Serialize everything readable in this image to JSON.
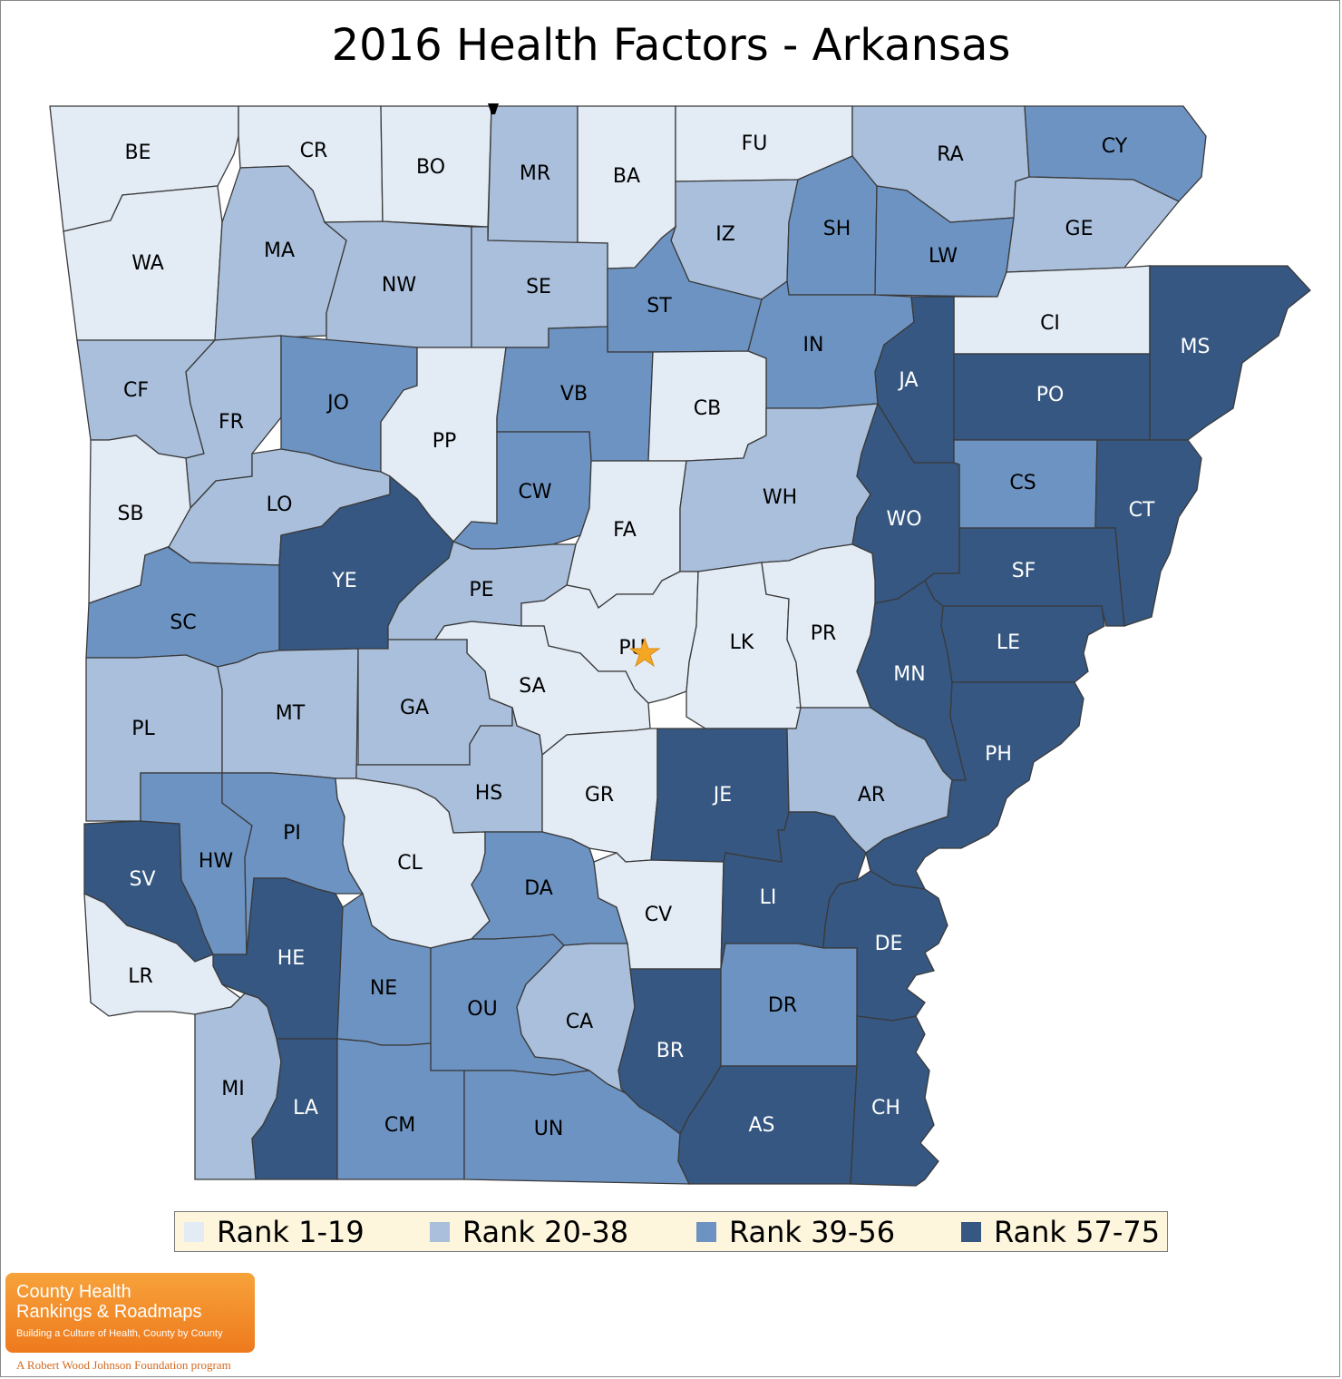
{
  "title": "2016 Health Factors - Arkansas",
  "legend": [
    {
      "label": "Rank 1-19",
      "color": "#e3ebf5"
    },
    {
      "label": "Rank 20-38",
      "color": "#a9bfdb"
    },
    {
      "label": "Rank 39-56",
      "color": "#6d93c2"
    },
    {
      "label": "Rank 57-75",
      "color": "#355781"
    }
  ],
  "counties": [
    {
      "code": "BE",
      "tier": 0
    },
    {
      "code": "CR",
      "tier": 0
    },
    {
      "code": "BO",
      "tier": 0
    },
    {
      "code": "MR",
      "tier": 1
    },
    {
      "code": "BA",
      "tier": 0
    },
    {
      "code": "FU",
      "tier": 0
    },
    {
      "code": "RA",
      "tier": 1
    },
    {
      "code": "CY",
      "tier": 2
    },
    {
      "code": "WA",
      "tier": 0
    },
    {
      "code": "MA",
      "tier": 1
    },
    {
      "code": "NW",
      "tier": 1
    },
    {
      "code": "SE",
      "tier": 1
    },
    {
      "code": "IZ",
      "tier": 1
    },
    {
      "code": "SH",
      "tier": 2
    },
    {
      "code": "LW",
      "tier": 2
    },
    {
      "code": "GE",
      "tier": 1
    },
    {
      "code": "ST",
      "tier": 2
    },
    {
      "code": "CI",
      "tier": 0
    },
    {
      "code": "MS",
      "tier": 3
    },
    {
      "code": "IN",
      "tier": 2
    },
    {
      "code": "CF",
      "tier": 1
    },
    {
      "code": "FR",
      "tier": 1
    },
    {
      "code": "JO",
      "tier": 2
    },
    {
      "code": "PP",
      "tier": 0
    },
    {
      "code": "VB",
      "tier": 2
    },
    {
      "code": "CB",
      "tier": 0
    },
    {
      "code": "JA",
      "tier": 3
    },
    {
      "code": "PO",
      "tier": 3
    },
    {
      "code": "CS",
      "tier": 2
    },
    {
      "code": "CT",
      "tier": 3
    },
    {
      "code": "SB",
      "tier": 0
    },
    {
      "code": "LO",
      "tier": 1
    },
    {
      "code": "CW",
      "tier": 2
    },
    {
      "code": "FA",
      "tier": 0
    },
    {
      "code": "WH",
      "tier": 1
    },
    {
      "code": "WO",
      "tier": 3
    },
    {
      "code": "SF",
      "tier": 3
    },
    {
      "code": "YE",
      "tier": 3
    },
    {
      "code": "SC",
      "tier": 2
    },
    {
      "code": "PE",
      "tier": 1
    },
    {
      "code": "PU",
      "tier": 0
    },
    {
      "code": "LK",
      "tier": 0
    },
    {
      "code": "PR",
      "tier": 0
    },
    {
      "code": "LE",
      "tier": 3
    },
    {
      "code": "MN",
      "tier": 3
    },
    {
      "code": "SA",
      "tier": 0
    },
    {
      "code": "PL",
      "tier": 1
    },
    {
      "code": "MT",
      "tier": 1
    },
    {
      "code": "GA",
      "tier": 1
    },
    {
      "code": "PH",
      "tier": 3
    },
    {
      "code": "HS",
      "tier": 1
    },
    {
      "code": "GR",
      "tier": 0
    },
    {
      "code": "JE",
      "tier": 3
    },
    {
      "code": "AR",
      "tier": 1
    },
    {
      "code": "SV",
      "tier": 3
    },
    {
      "code": "HW",
      "tier": 2
    },
    {
      "code": "PI",
      "tier": 2
    },
    {
      "code": "CL",
      "tier": 0
    },
    {
      "code": "DA",
      "tier": 2
    },
    {
      "code": "CV",
      "tier": 0
    },
    {
      "code": "LI",
      "tier": 3
    },
    {
      "code": "DE",
      "tier": 3
    },
    {
      "code": "HE",
      "tier": 3
    },
    {
      "code": "LR",
      "tier": 0
    },
    {
      "code": "NE",
      "tier": 2
    },
    {
      "code": "OU",
      "tier": 2
    },
    {
      "code": "CA",
      "tier": 1
    },
    {
      "code": "BR",
      "tier": 3
    },
    {
      "code": "DR",
      "tier": 2
    },
    {
      "code": "MI",
      "tier": 1
    },
    {
      "code": "LA",
      "tier": 3
    },
    {
      "code": "CM",
      "tier": 2
    },
    {
      "code": "UN",
      "tier": 2
    },
    {
      "code": "AS",
      "tier": 3
    },
    {
      "code": "CH",
      "tier": 3
    }
  ],
  "capital_marker": "star-icon",
  "logo": {
    "line1": "County Health",
    "line2": "Rankings & Roadmaps",
    "tagline": "Building a Culture of Health, County by County",
    "sponsor": "A Robert Wood Johnson Foundation program"
  }
}
